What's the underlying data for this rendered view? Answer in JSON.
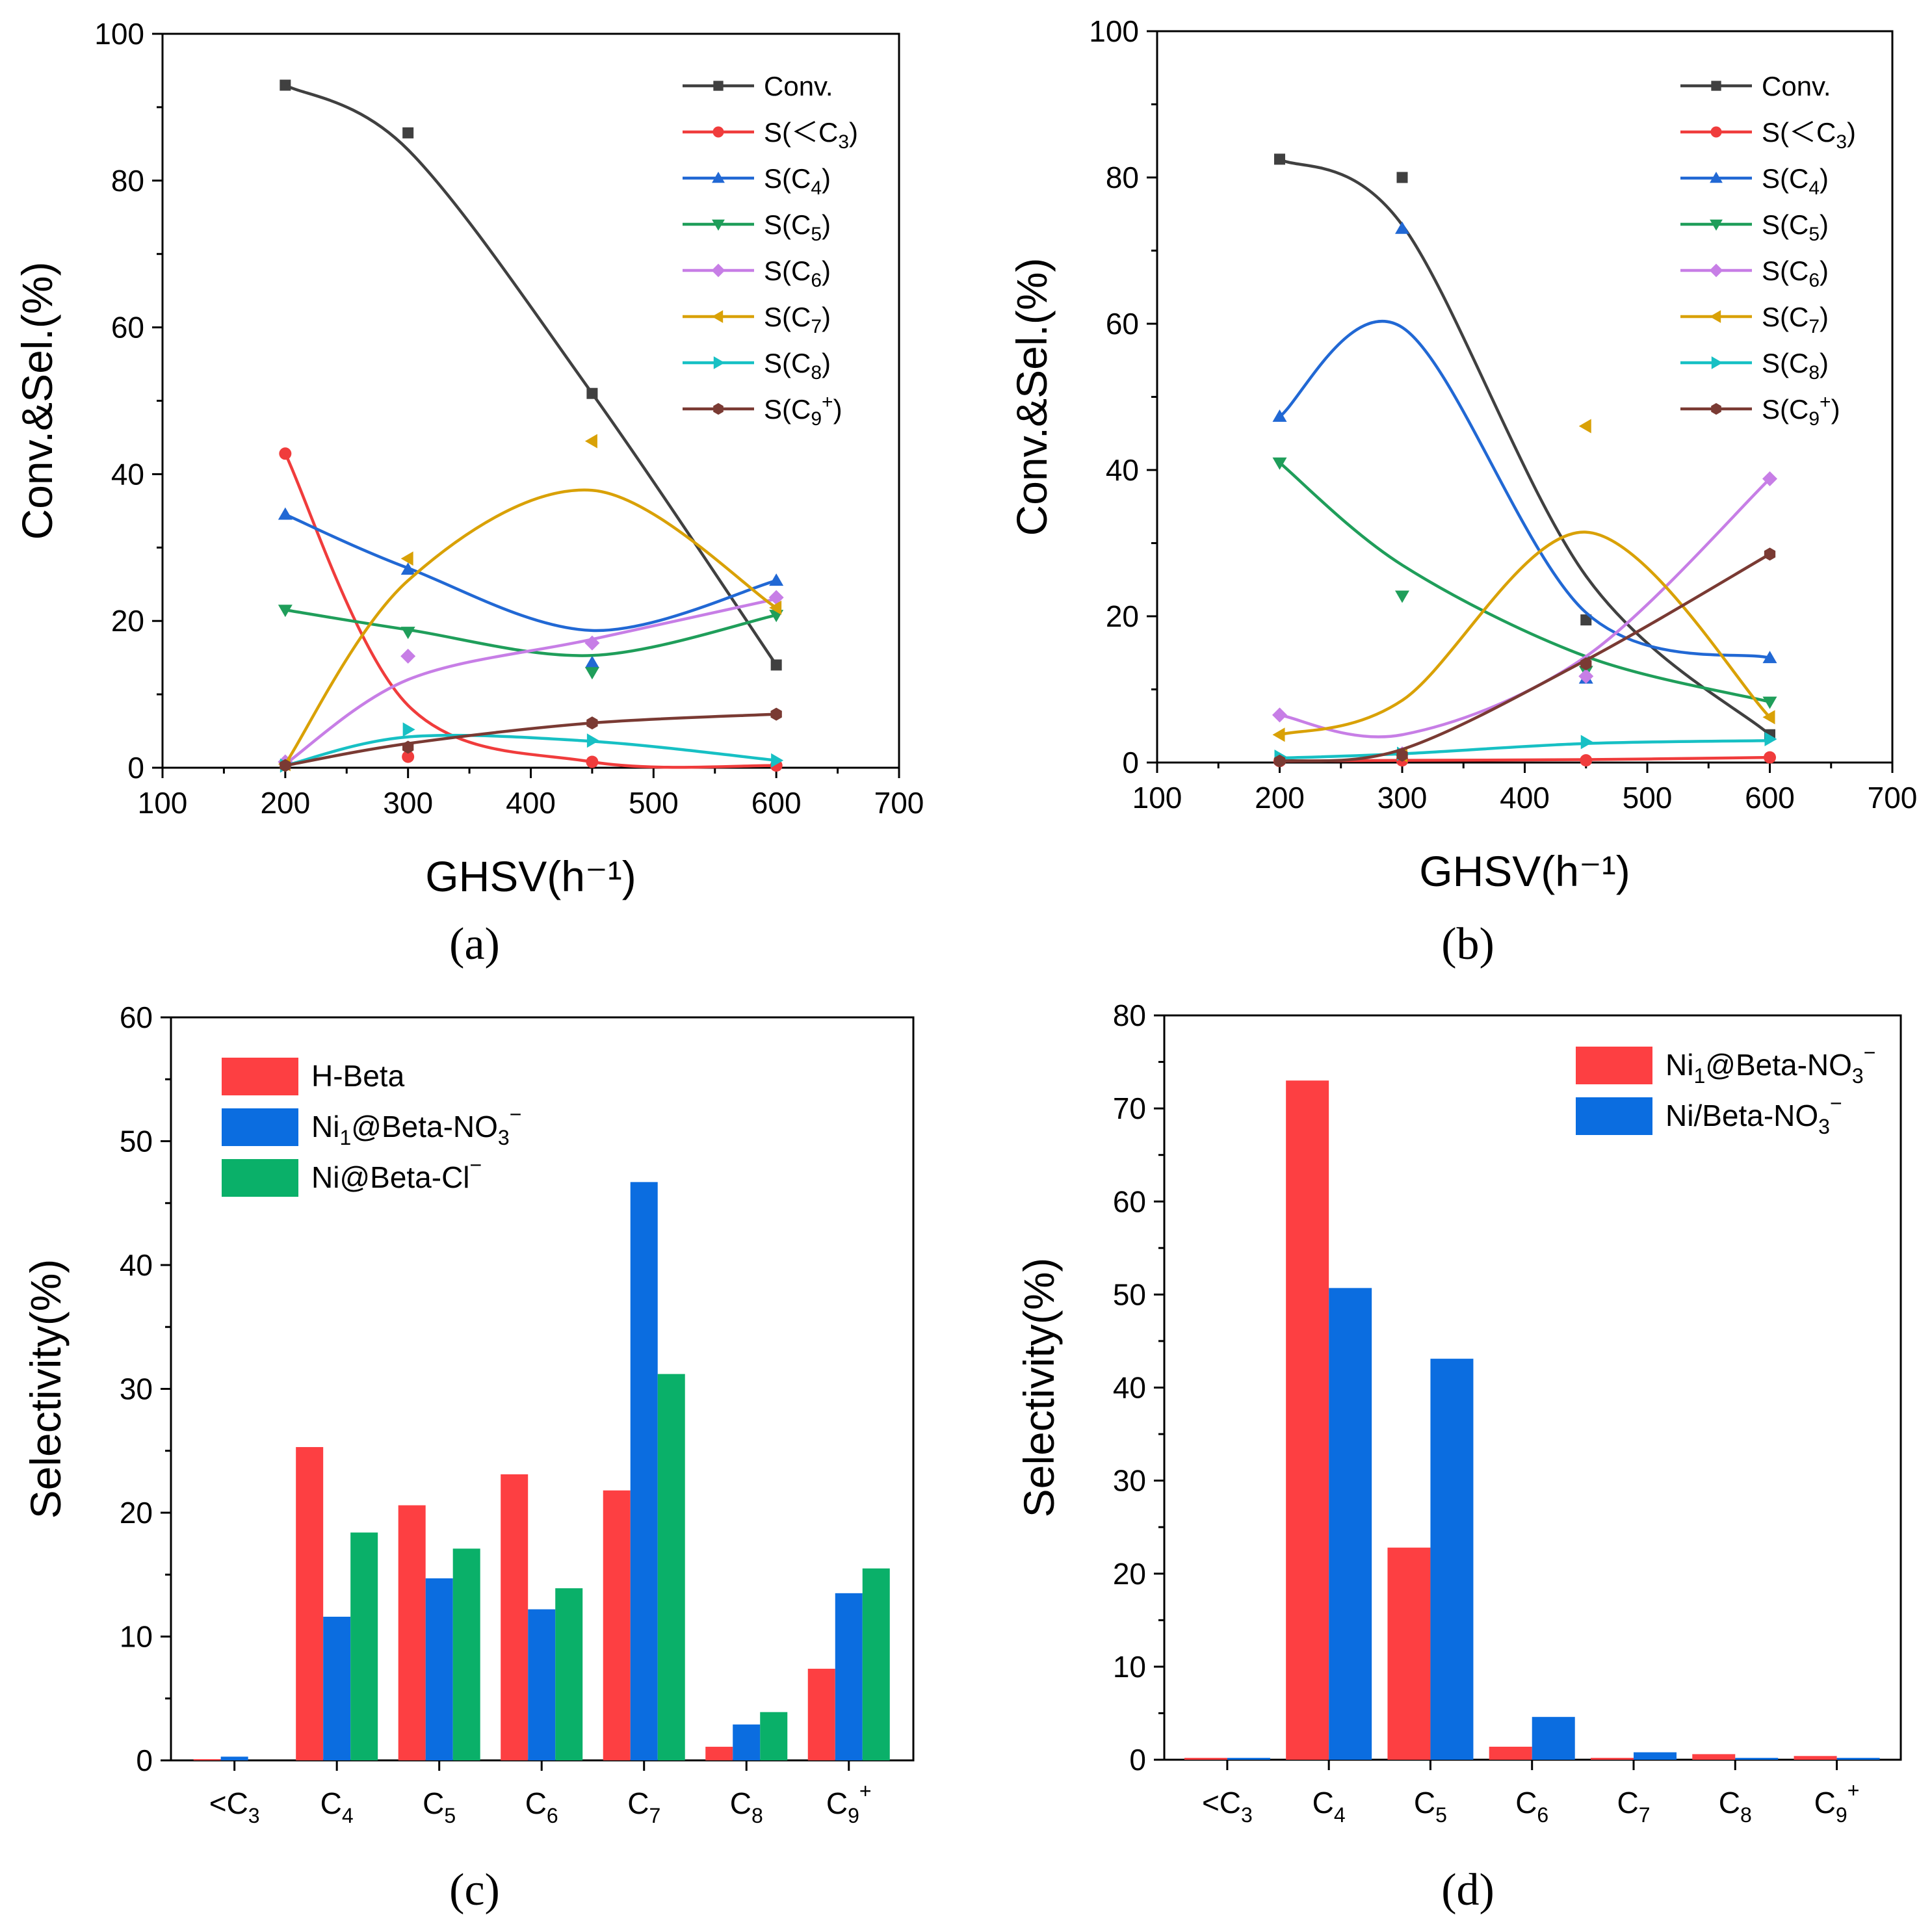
{
  "chart_data": [
    {
      "id": "a",
      "type": "line",
      "panel_label": "(a)",
      "xlabel": "GHSV(h⁻¹)",
      "ylabel": "Conv.&Sel.(%)",
      "xlim": [
        100,
        700
      ],
      "ylim": [
        0,
        100
      ],
      "x_ticks": [
        100,
        200,
        300,
        400,
        500,
        600,
        700
      ],
      "y_ticks": [
        0,
        20,
        40,
        60,
        80,
        100
      ],
      "x": [
        200,
        300,
        450,
        600
      ],
      "legend_position": "top-right",
      "series": [
        {
          "name": "Conv.",
          "label_main": "Conv.",
          "sub": "",
          "sup": "",
          "suffix": "",
          "color": "#404040",
          "marker": "square",
          "values": [
            93.0,
            86.5,
            51.0,
            14.0
          ],
          "fit": [
            93.0,
            84.2,
            51.0,
            14.0
          ]
        },
        {
          "name": "S(<C3)",
          "label_main": "S(＜C",
          "sub": "3",
          "sup": "",
          "suffix": ")",
          "color": "#f03c3c",
          "marker": "circle",
          "values": [
            42.8,
            1.5,
            0.8,
            0.3
          ],
          "fit": [
            42.8,
            8.5,
            0.8,
            0.3
          ]
        },
        {
          "name": "S(C4)",
          "label_main": "S(C",
          "sub": "4",
          "sup": "",
          "suffix": ")",
          "color": "#2168d4",
          "marker": "triangle-up",
          "values": [
            34.5,
            27.0,
            14.3,
            25.5
          ],
          "fit": [
            34.5,
            27.2,
            18.7,
            25.5
          ]
        },
        {
          "name": "S(C5)",
          "label_main": "S(C",
          "sub": "5",
          "sup": "",
          "suffix": ")",
          "color": "#1f9e5a",
          "marker": "triangle-down",
          "values": [
            21.5,
            18.5,
            13.0,
            20.8
          ],
          "fit": [
            21.5,
            18.8,
            15.3,
            20.8
          ]
        },
        {
          "name": "S(C6)",
          "label_main": "S(C",
          "sub": "6",
          "sup": "",
          "suffix": ")",
          "color": "#c77ee6",
          "marker": "diamond",
          "values": [
            0.8,
            15.2,
            17.0,
            23.2
          ],
          "fit": [
            0.5,
            12.0,
            17.5,
            23.0
          ]
        },
        {
          "name": "S(C7)",
          "label_main": "S(C",
          "sub": "7",
          "sup": "",
          "suffix": ")",
          "color": "#d9a106",
          "marker": "triangle-left",
          "values": [
            0.5,
            28.5,
            44.5,
            21.8
          ],
          "fit": [
            0.5,
            25.5,
            37.8,
            21.8
          ]
        },
        {
          "name": "S(C8)",
          "label_main": "S(C",
          "sub": "8",
          "sup": "",
          "suffix": ")",
          "color": "#17c0c4",
          "marker": "triangle-right",
          "values": [
            0.3,
            5.2,
            3.7,
            1.0
          ],
          "fit": [
            0.3,
            4.2,
            3.6,
            1.0
          ]
        },
        {
          "name": "S(C9+)",
          "label_main": "S(C",
          "sub": "9",
          "sup": "+",
          "suffix": ")",
          "color": "#7a3a33",
          "marker": "hexagon",
          "values": [
            0.3,
            2.8,
            6.1,
            7.3
          ],
          "fit": [
            0.3,
            3.3,
            6.1,
            7.3
          ]
        }
      ]
    },
    {
      "id": "b",
      "type": "line",
      "panel_label": "(b)",
      "xlabel": "GHSV(h⁻¹)",
      "ylabel": "Conv.&Sel.(%)",
      "xlim": [
        100,
        700
      ],
      "ylim": [
        0,
        100
      ],
      "x_ticks": [
        100,
        200,
        300,
        400,
        500,
        600,
        700
      ],
      "y_ticks": [
        0,
        20,
        40,
        60,
        80,
        100
      ],
      "x": [
        200,
        300,
        450,
        600
      ],
      "legend_position": "top-right",
      "series": [
        {
          "name": "Conv.",
          "label_main": "Conv.",
          "sub": "",
          "sup": "",
          "suffix": "",
          "color": "#404040",
          "marker": "square",
          "values": [
            82.5,
            80.0,
            19.5,
            3.8
          ],
          "fit": [
            82.5,
            73.5,
            25.5,
            3.8
          ]
        },
        {
          "name": "S(<C3)",
          "label_main": "S(＜C",
          "sub": "3",
          "sup": "",
          "suffix": ")",
          "color": "#f03c3c",
          "marker": "circle",
          "values": [
            0.2,
            0.3,
            0.3,
            0.7
          ],
          "fit": [
            0.2,
            0.3,
            0.4,
            0.7
          ]
        },
        {
          "name": "S(C4)",
          "label_main": "S(C",
          "sub": "4",
          "sup": "",
          "suffix": ")",
          "color": "#2168d4",
          "marker": "triangle-up",
          "values": [
            47.3,
            73.0,
            11.5,
            14.3
          ],
          "fit": [
            47.3,
            59.5,
            20.5,
            14.3
          ]
        },
        {
          "name": "S(C5)",
          "label_main": "S(C",
          "sub": "5",
          "sup": "",
          "suffix": ")",
          "color": "#1f9e5a",
          "marker": "triangle-down",
          "values": [
            41.0,
            22.8,
            12.5,
            8.3
          ],
          "fit": [
            41.0,
            27.0,
            14.5,
            8.3
          ]
        },
        {
          "name": "S(C6)",
          "label_main": "S(C",
          "sub": "6",
          "sup": "",
          "suffix": ")",
          "color": "#c77ee6",
          "marker": "diamond",
          "values": [
            6.5,
            1.2,
            11.8,
            38.8
          ],
          "fit": [
            6.5,
            3.8,
            14.5,
            38.8
          ]
        },
        {
          "name": "S(C7)",
          "label_main": "S(C",
          "sub": "7",
          "sup": "",
          "suffix": ")",
          "color": "#d9a106",
          "marker": "triangle-left",
          "values": [
            3.8,
            1.0,
            46.0,
            6.2
          ],
          "fit": [
            3.8,
            8.5,
            31.5,
            6.2
          ]
        },
        {
          "name": "S(C8)",
          "label_main": "S(C",
          "sub": "8",
          "sup": "",
          "suffix": ")",
          "color": "#17c0c4",
          "marker": "triangle-right",
          "values": [
            0.8,
            1.2,
            2.8,
            3.2
          ],
          "fit": [
            0.6,
            1.2,
            2.6,
            3.0
          ]
        },
        {
          "name": "S(C9+)",
          "label_main": "S(C",
          "sub": "9",
          "sup": "+",
          "suffix": ")",
          "color": "#7a3a33",
          "marker": "hexagon",
          "values": [
            0.2,
            1.0,
            13.5,
            28.5
          ],
          "fit": [
            0.2,
            1.8,
            14.0,
            28.5
          ]
        }
      ]
    },
    {
      "id": "c",
      "type": "bar",
      "panel_label": "(c)",
      "xlabel": "",
      "ylabel": "Selectivity(%)",
      "ylim": [
        0,
        60
      ],
      "y_ticks": [
        0,
        10,
        20,
        30,
        40,
        50,
        60
      ],
      "categories": [
        {
          "prefix": "<C",
          "sub": "3",
          "sup": ""
        },
        {
          "prefix": "C",
          "sub": "4",
          "sup": ""
        },
        {
          "prefix": "C",
          "sub": "5",
          "sup": ""
        },
        {
          "prefix": "C",
          "sub": "6",
          "sup": ""
        },
        {
          "prefix": "C",
          "sub": "7",
          "sup": ""
        },
        {
          "prefix": "C",
          "sub": "8",
          "sup": ""
        },
        {
          "prefix": "C",
          "sub": "9",
          "sup": "+"
        }
      ],
      "legend_position": "top-left",
      "series": [
        {
          "name": "H-Beta",
          "label_parts": [
            {
              "t": "H-Beta",
              "s": "n"
            }
          ],
          "color": "#fd3f42",
          "values": [
            0.1,
            25.3,
            20.6,
            23.1,
            21.8,
            1.1,
            7.4
          ]
        },
        {
          "name": "Ni1@Beta-NO3−",
          "label_parts": [
            {
              "t": "Ni",
              "s": "n"
            },
            {
              "t": "1",
              "s": "sub"
            },
            {
              "t": "@Beta-NO",
              "s": "n"
            },
            {
              "t": "3",
              "s": "sub"
            },
            {
              "t": "−",
              "s": "sup"
            }
          ],
          "color": "#0b6de0",
          "values": [
            0.3,
            11.6,
            14.7,
            12.2,
            46.7,
            2.9,
            13.5
          ]
        },
        {
          "name": "Ni@Beta-Cl−",
          "label_parts": [
            {
              "t": "Ni@Beta-Cl",
              "s": "n"
            },
            {
              "t": "−",
              "s": "sup"
            }
          ],
          "color": "#0ab069",
          "values": [
            0.0,
            18.4,
            17.1,
            13.9,
            31.2,
            3.9,
            15.5
          ]
        }
      ]
    },
    {
      "id": "d",
      "type": "bar",
      "panel_label": "(d)",
      "xlabel": "",
      "ylabel": "Selectivity(%)",
      "ylim": [
        0,
        80
      ],
      "y_ticks": [
        0,
        10,
        20,
        30,
        40,
        50,
        60,
        70,
        80
      ],
      "categories": [
        {
          "prefix": "<C",
          "sub": "3",
          "sup": ""
        },
        {
          "prefix": "C",
          "sub": "4",
          "sup": ""
        },
        {
          "prefix": "C",
          "sub": "5",
          "sup": ""
        },
        {
          "prefix": "C",
          "sub": "6",
          "sup": ""
        },
        {
          "prefix": "C",
          "sub": "7",
          "sup": ""
        },
        {
          "prefix": "C",
          "sub": "8",
          "sup": ""
        },
        {
          "prefix": "C",
          "sub": "9",
          "sup": "+"
        }
      ],
      "legend_position": "top-right",
      "series": [
        {
          "name": "Ni1@Beta-NO3−",
          "label_parts": [
            {
              "t": "Ni",
              "s": "n"
            },
            {
              "t": "1",
              "s": "sub"
            },
            {
              "t": "@Beta-NO",
              "s": "n"
            },
            {
              "t": "3",
              "s": "sub"
            },
            {
              "t": "−",
              "s": "sup"
            }
          ],
          "color": "#fd3f42",
          "values": [
            0.2,
            73.0,
            22.8,
            1.4,
            0.2,
            0.6,
            0.4
          ]
        },
        {
          "name": "Ni/Beta-NO3−",
          "label_parts": [
            {
              "t": "Ni/Beta-NO",
              "s": "n"
            },
            {
              "t": "3",
              "s": "sub"
            },
            {
              "t": "−",
              "s": "sup"
            }
          ],
          "color": "#0b6de0",
          "values": [
            0.2,
            50.7,
            43.1,
            4.6,
            0.8,
            0.2,
            0.2
          ]
        }
      ]
    }
  ]
}
